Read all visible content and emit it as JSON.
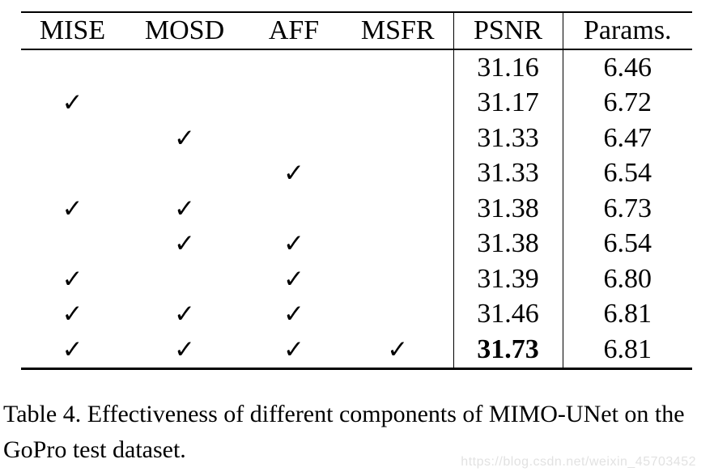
{
  "table": {
    "columns": [
      {
        "key": "mise",
        "label": "MISE"
      },
      {
        "key": "mosd",
        "label": "MOSD"
      },
      {
        "key": "aff",
        "label": "AFF"
      },
      {
        "key": "msfr",
        "label": "MSFR"
      },
      {
        "key": "psnr",
        "label": "PSNR"
      },
      {
        "key": "params",
        "label": "Params."
      }
    ],
    "check_glyph": "✓",
    "rows": [
      {
        "checks": {
          "mise": false,
          "mosd": false,
          "aff": false,
          "msfr": false
        },
        "psnr": "31.16",
        "psnr_bold": false,
        "params": "6.46"
      },
      {
        "checks": {
          "mise": true,
          "mosd": false,
          "aff": false,
          "msfr": false
        },
        "psnr": "31.17",
        "psnr_bold": false,
        "params": "6.72"
      },
      {
        "checks": {
          "mise": false,
          "mosd": true,
          "aff": false,
          "msfr": false
        },
        "psnr": "31.33",
        "psnr_bold": false,
        "params": "6.47"
      },
      {
        "checks": {
          "mise": false,
          "mosd": false,
          "aff": true,
          "msfr": false
        },
        "psnr": "31.33",
        "psnr_bold": false,
        "params": "6.54"
      },
      {
        "checks": {
          "mise": true,
          "mosd": true,
          "aff": false,
          "msfr": false
        },
        "psnr": "31.38",
        "psnr_bold": false,
        "params": "6.73"
      },
      {
        "checks": {
          "mise": false,
          "mosd": true,
          "aff": true,
          "msfr": false
        },
        "psnr": "31.38",
        "psnr_bold": false,
        "params": "6.54"
      },
      {
        "checks": {
          "mise": true,
          "mosd": false,
          "aff": true,
          "msfr": false
        },
        "psnr": "31.39",
        "psnr_bold": false,
        "params": "6.80"
      },
      {
        "checks": {
          "mise": true,
          "mosd": true,
          "aff": true,
          "msfr": false
        },
        "psnr": "31.46",
        "psnr_bold": false,
        "params": "6.81"
      },
      {
        "checks": {
          "mise": true,
          "mosd": true,
          "aff": true,
          "msfr": true
        },
        "psnr": "31.73",
        "psnr_bold": true,
        "params": "6.81"
      }
    ]
  },
  "caption": "Table 4. Effectiveness of different components of MIMO-UNet on the GoPro test dataset.",
  "watermark": "https://blog.csdn.net/weixin_45703452",
  "colors": {
    "text": "#000000",
    "rule": "#000000",
    "watermark": "#e2e2e2",
    "background": "#ffffff"
  }
}
